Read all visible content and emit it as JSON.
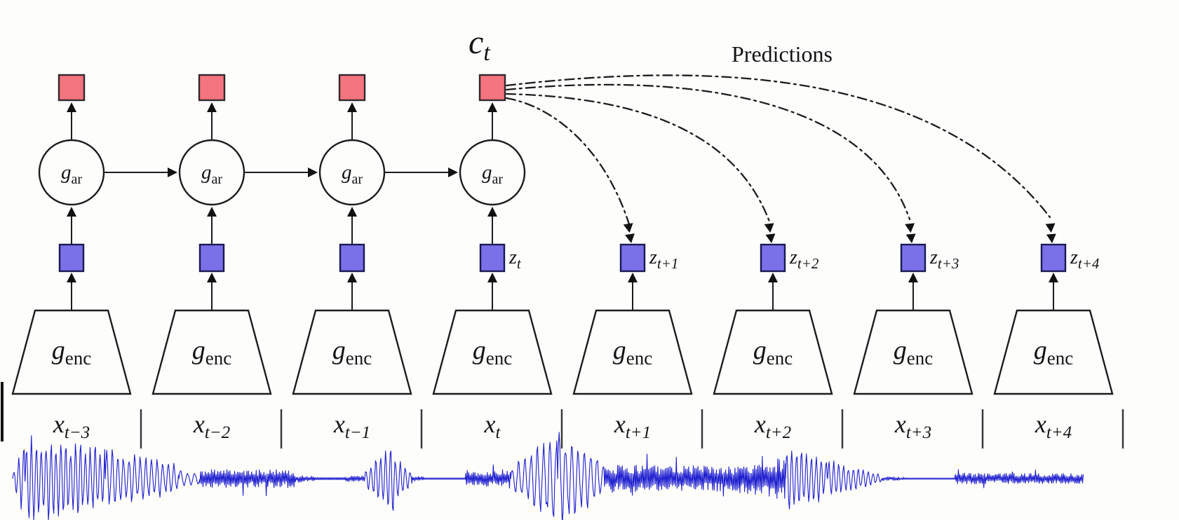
{
  "figure": {
    "context_label": {
      "main": "c",
      "sub": "t"
    },
    "predictions_label": "Predictions",
    "ar_label": {
      "main": "g",
      "sub": "ar"
    },
    "enc_label": {
      "main": "g",
      "sub": "enc"
    },
    "x_labels": [
      {
        "main": "x",
        "sub": "t−3"
      },
      {
        "main": "x",
        "sub": "t−2"
      },
      {
        "main": "x",
        "sub": "t−1"
      },
      {
        "main": "x",
        "sub": "t"
      },
      {
        "main": "x",
        "sub": "t+1"
      },
      {
        "main": "x",
        "sub": "t+2"
      },
      {
        "main": "x",
        "sub": "t+3"
      },
      {
        "main": "x",
        "sub": "t+4"
      }
    ],
    "z_labels": [
      {
        "main": "z",
        "sub": "t"
      },
      {
        "main": "z",
        "sub": "t+1"
      },
      {
        "main": "z",
        "sub": "t+2"
      },
      {
        "main": "z",
        "sub": "t+3"
      },
      {
        "main": "z",
        "sub": "t+4"
      }
    ],
    "colors": {
      "context_fill": "#f4757f",
      "latent_fill": "#7a70e8",
      "waveform": "#1e1ecf"
    }
  },
  "waveform": {
    "centerline": 683,
    "segments": [
      [
        18,
        36,
        8,
        50,
        "p",
        7
      ],
      [
        36,
        150,
        52,
        38,
        "p",
        7
      ],
      [
        150,
        255,
        38,
        16,
        "p",
        8
      ],
      [
        255,
        285,
        10,
        6,
        "p",
        10
      ],
      [
        285,
        420,
        13,
        13,
        "n",
        0
      ],
      [
        420,
        448,
        6,
        3,
        "n",
        0
      ],
      [
        448,
        492,
        1.5,
        1.5,
        "f",
        0
      ],
      [
        492,
        520,
        4,
        4,
        "n",
        0
      ],
      [
        520,
        562,
        10,
        45,
        "p",
        7
      ],
      [
        562,
        588,
        30,
        8,
        "p",
        7
      ],
      [
        588,
        604,
        4,
        3,
        "n",
        0
      ],
      [
        604,
        664,
        1.2,
        1.2,
        "f",
        0
      ],
      [
        664,
        700,
        9,
        12,
        "n",
        0
      ],
      [
        700,
        728,
        12,
        14,
        "n",
        0
      ],
      [
        728,
        795,
        14,
        55,
        "p",
        9
      ],
      [
        795,
        862,
        55,
        22,
        "p",
        9
      ],
      [
        862,
        1055,
        20,
        18,
        "n",
        0
      ],
      [
        1055,
        1120,
        22,
        30,
        "n",
        0
      ],
      [
        1120,
        1180,
        45,
        22,
        "p",
        7
      ],
      [
        1180,
        1258,
        22,
        5,
        "p",
        7
      ],
      [
        1258,
        1292,
        3,
        2,
        "n",
        0
      ],
      [
        1292,
        1362,
        1,
        1,
        "f",
        0
      ],
      [
        1362,
        1545,
        8,
        7,
        "n",
        0
      ]
    ]
  }
}
